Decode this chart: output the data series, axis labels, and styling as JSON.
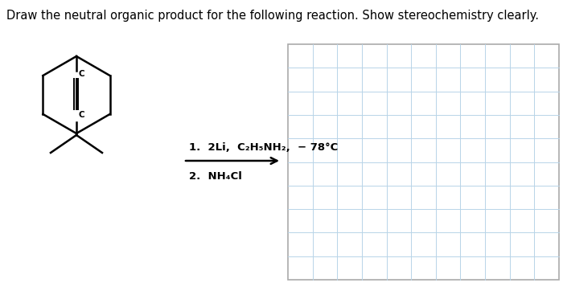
{
  "title": "Draw the neutral organic product for the following reaction. Show stereochemistry clearly.",
  "title_fontsize": 10.5,
  "condition_line1": "1.  2Li,  C₂H₅NH₂,  − 78¼",
  "condition_line2": "2.  NH₄Cl",
  "bg_color": "#ffffff",
  "grid_color": "#b8d4e8",
  "grid_border_color": "#aaaaaa",
  "n_cols": 11,
  "n_rows": 10,
  "arrow_color": "#000000"
}
